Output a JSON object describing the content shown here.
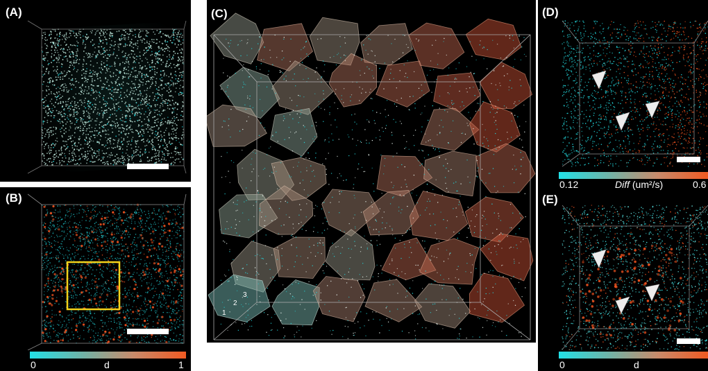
{
  "panels": {
    "a": {
      "label": "(A)"
    },
    "b": {
      "label": "(B)"
    },
    "c": {
      "label": "(C)"
    },
    "d": {
      "label": "(D)"
    },
    "e": {
      "label": "(E)"
    }
  },
  "colorbar_d_panel": {
    "min_label": "0.12",
    "title_italic": "Diff",
    "title_unit": " (um²/s)",
    "max_label": "0.6"
  },
  "colorbar_b_panel": {
    "min_label": "0",
    "title": "d",
    "max_label": "1"
  },
  "colorbar_e_panel": {
    "min_label": "0",
    "title": "d"
  },
  "axis_ticks_c": [
    "1",
    "2",
    "3"
  ],
  "colors": {
    "cyan": "#22d3d8",
    "orange": "#e8501e",
    "pale": "#bfe8dc",
    "highlight_box": "#f2d21a"
  }
}
